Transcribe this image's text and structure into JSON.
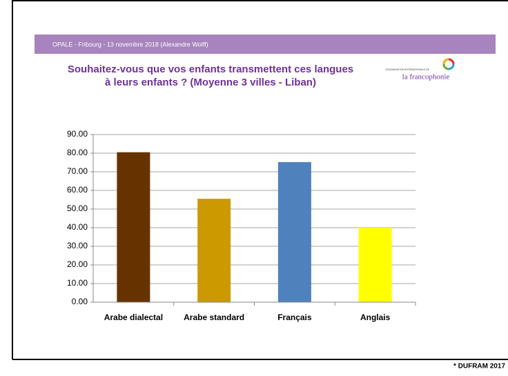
{
  "header": {
    "text": "OPALE - Fribourg - 13 novembre 2018 (Alexandre Wolff)"
  },
  "logo": {
    "small": "ORGANISATION INTERNATIONALE DE",
    "name": "la francophonie"
  },
  "footnote": "* DUFRAM 2017",
  "chart_data": {
    "type": "bar",
    "title": [
      "Souhaitez-vous que vos enfants transmettent ces langues",
      "à leurs enfants ? (Moyenne 3 villes - Liban)"
    ],
    "categories": [
      "Arabe dialectal",
      "Arabe standard",
      "Français",
      "Anglais"
    ],
    "values": [
      80.5,
      55.5,
      75.2,
      40
    ],
    "colors": [
      "#663300",
      "#cc9900",
      "#4f81bd",
      "#ffff00"
    ],
    "ylim": [
      0,
      90
    ],
    "yticks": [
      {
        "value": 0,
        "label": "0.00"
      },
      {
        "value": 10,
        "label": "10.00"
      },
      {
        "value": 20,
        "label": "20.00"
      },
      {
        "value": 30,
        "label": "30.00"
      },
      {
        "value": 40,
        "label": "40.00"
      },
      {
        "value": 50,
        "label": "50.00"
      },
      {
        "value": 60,
        "label": "60.00"
      },
      {
        "value": 70,
        "label": "70.00"
      },
      {
        "value": 80,
        "label": "80.00"
      },
      {
        "value": 90,
        "label": "90.00"
      }
    ],
    "grid": true
  }
}
